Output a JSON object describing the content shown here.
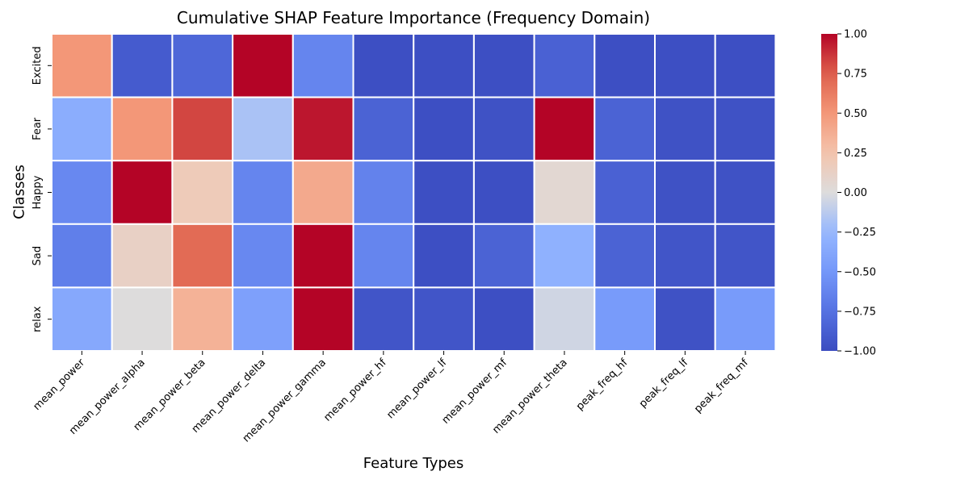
{
  "chart_data": {
    "type": "heatmap",
    "title": "Cumulative SHAP Feature Importance (Frequency Domain)",
    "xlabel": "Feature Types",
    "ylabel": "Classes",
    "x_categories": [
      "mean_power",
      "mean_power_alpha",
      "mean_power_beta",
      "mean_power_delta",
      "mean_power_gamma",
      "mean_power_hf",
      "mean_power_lf",
      "mean_power_mf",
      "mean_power_theta",
      "peak_freq_hf",
      "peak_freq_lf",
      "peak_freq_mf"
    ],
    "y_categories": [
      "Excited",
      "Fear",
      "Happy",
      "Sad",
      "relax"
    ],
    "values": [
      [
        0.5,
        -0.9,
        -0.82,
        1.0,
        -0.62,
        -0.98,
        -0.98,
        -0.98,
        -0.86,
        -0.98,
        -0.98,
        -0.98
      ],
      [
        -0.33,
        0.5,
        0.82,
        -0.18,
        0.95,
        -0.85,
        -0.98,
        -0.96,
        1.0,
        -0.85,
        -0.96,
        -0.96
      ],
      [
        -0.6,
        1.0,
        0.18,
        -0.62,
        0.4,
        -0.64,
        -0.98,
        -0.98,
        0.05,
        -0.86,
        -0.96,
        -0.96
      ],
      [
        -0.66,
        0.12,
        0.7,
        -0.6,
        1.0,
        -0.62,
        -0.98,
        -0.85,
        -0.3,
        -0.85,
        -0.94,
        -0.94
      ],
      [
        -0.37,
        0.0,
        0.35,
        -0.43,
        1.0,
        -0.94,
        -0.94,
        -0.98,
        -0.05,
        -0.47,
        -0.96,
        -0.47
      ]
    ],
    "colormap": "coolwarm",
    "vmin": -1.0,
    "vmax": 1.0,
    "colorbar_ticks": [
      "1.00",
      "0.75",
      "0.50",
      "0.25",
      "0.00",
      "−0.25",
      "−0.50",
      "−0.75",
      "−1.00"
    ],
    "cell_border_color": "#ffffff",
    "colorbar_position": "right"
  }
}
